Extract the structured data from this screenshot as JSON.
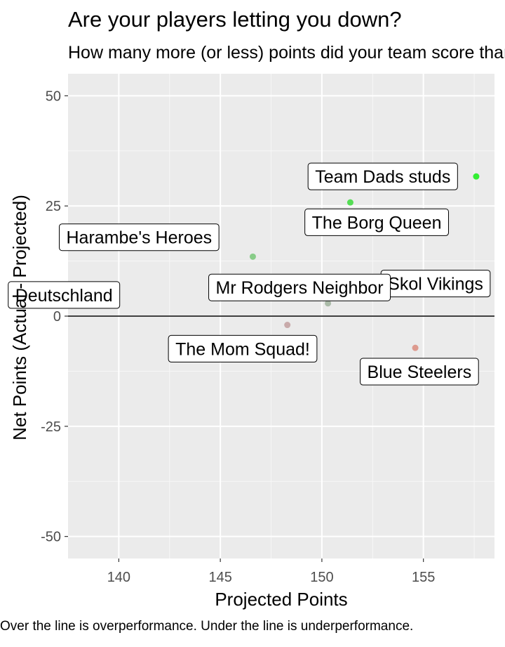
{
  "chart_data": {
    "type": "scatter",
    "title": "Are your players letting you down?",
    "subtitle": "How many more (or less) points did your team score than projected?",
    "xlabel": "Projected Points",
    "ylabel": "Net Points (Actual - Projected)",
    "caption": "Over the line is overperformance.  Under the line is underperformance.",
    "xlim": [
      137.5,
      158.5
    ],
    "ylim": [
      -55,
      55
    ],
    "x_ticks": [
      "140",
      "145",
      "150",
      "155"
    ],
    "y_ticks": [
      "50",
      "25",
      "0",
      "-25",
      "-50"
    ],
    "grid": true,
    "reference_line_y": 0,
    "points": [
      {
        "team": "Team Dads studs",
        "x": 157.6,
        "y": 31.7,
        "color": "#33ee33"
      },
      {
        "team": "The Borg Queen",
        "x": 151.4,
        "y": 25.8,
        "color": "#55dd55"
      },
      {
        "team": "Harambe's Heroes",
        "x": 146.6,
        "y": 13.5,
        "color": "#88cc88"
      },
      {
        "team": "Skol Vikings",
        "x": 150.3,
        "y": 2.9,
        "color": "#aabba8"
      },
      {
        "team": "Deutschland",
        "x": 148.3,
        "y": -2.0,
        "color": "#c8aaaa"
      },
      {
        "team": "Mr Rodgers Neighbor",
        "x": 150.3,
        "y": 2.9,
        "color": "#aabba8"
      },
      {
        "team": "The Mom  Squad!",
        "x": 148.3,
        "y": -2.0,
        "color": "#c8aaaa"
      },
      {
        "team": "Blue Steelers",
        "x": 154.6,
        "y": -7.2,
        "color": "#dd9a8e"
      }
    ]
  }
}
